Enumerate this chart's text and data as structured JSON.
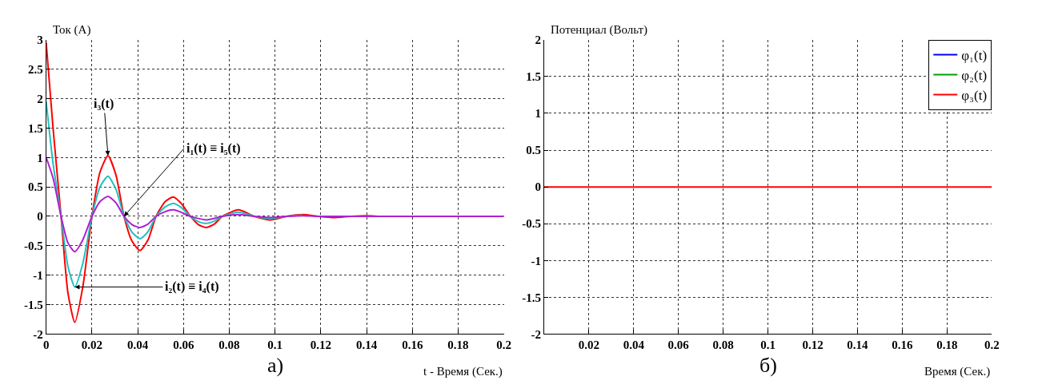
{
  "chart_data": [
    {
      "type": "line",
      "xlabel": "t - Время (Сек.)",
      "ylabel": "Ток (А)",
      "xlim": [
        0,
        0.2
      ],
      "ylim": [
        -2,
        3
      ],
      "xticks": [
        0,
        0.02,
        0.04,
        0.06,
        0.08,
        0.1,
        0.12,
        0.14,
        0.16,
        0.18,
        0.2
      ],
      "yticks": [
        -2,
        -1.5,
        -1,
        -0.5,
        0,
        0.5,
        1,
        1.5,
        2,
        2.5,
        3
      ],
      "grid": true,
      "legend": false,
      "line_style": "solid",
      "series": [
        {
          "color": "#ff0000",
          "x": [
            0,
            0.003,
            0.0065,
            0.0095,
            0.0125,
            0.016,
            0.02,
            0.0235,
            0.027,
            0.0305,
            0.034,
            0.0375,
            0.041,
            0.0445,
            0.048,
            0.052,
            0.0555,
            0.059,
            0.063,
            0.0665,
            0.07,
            0.0735,
            0.077,
            0.084,
            0.091,
            0.098,
            0.105,
            0.112,
            0.119,
            0.126,
            0.133,
            0.14,
            0.147,
            0.16
          ],
          "values": [
            2.95,
            1.5,
            0,
            -1.3,
            -1.8,
            -1.2,
            0,
            0.75,
            1.03,
            0.7,
            0,
            -0.42,
            -0.58,
            -0.4,
            0,
            0.25,
            0.33,
            0.22,
            0,
            -0.14,
            -0.19,
            -0.13,
            0,
            0.11,
            0,
            -0.06,
            0,
            0.03,
            0,
            -0.02,
            0,
            0.01,
            0,
            0
          ]
        },
        {
          "color": "#20c0c0",
          "x": [
            0,
            0.003,
            0.0065,
            0.0095,
            0.0125,
            0.016,
            0.02,
            0.0235,
            0.027,
            0.0305,
            0.034,
            0.0375,
            0.041,
            0.0445,
            0.048,
            0.052,
            0.0555,
            0.059,
            0.063,
            0.0665,
            0.07,
            0.0735,
            0.077,
            0.084,
            0.091,
            0.098,
            0.105,
            0.112
          ],
          "values": [
            1.95,
            0.9,
            0,
            -0.85,
            -1.2,
            -0.8,
            0,
            0.5,
            0.68,
            0.46,
            0,
            -0.27,
            -0.38,
            -0.26,
            0,
            0.16,
            0.22,
            0.15,
            0,
            -0.09,
            -0.12,
            -0.08,
            0,
            0.07,
            0,
            -0.04,
            0,
            0.02
          ]
        },
        {
          "color": "#b020d0",
          "x": [
            0,
            0.003,
            0.0065,
            0.0095,
            0.0125,
            0.016,
            0.02,
            0.0235,
            0.027,
            0.0305,
            0.034,
            0.0375,
            0.041,
            0.0445,
            0.048,
            0.052,
            0.0555,
            0.059,
            0.063,
            0.07,
            0.077,
            0.084,
            0.091,
            0.098,
            0.105,
            0.112,
            0.119,
            0.2
          ],
          "values": [
            1.0,
            0.65,
            0,
            -0.45,
            -0.6,
            -0.4,
            0,
            0.25,
            0.34,
            0.23,
            0,
            -0.14,
            -0.19,
            -0.13,
            0,
            0.08,
            0.11,
            0.07,
            0,
            -0.06,
            0,
            0.03,
            0,
            -0.02,
            0,
            0.01,
            0,
            0
          ]
        }
      ],
      "annotations": [
        {
          "text": "i₃(t)",
          "x": 0.027,
          "y": 1.03
        },
        {
          "text": "i₁(t) ≡ i₅(t)",
          "x": 0.034,
          "y": 0
        },
        {
          "text": "i₂(t) ≡ i₄(t)",
          "x": 0.0125,
          "y": -1.2
        },
        "a)"
      ]
    },
    {
      "type": "line",
      "xlabel": "Время (Сек.)",
      "ylabel": "Потенциал (Вольт)",
      "xlim": [
        0,
        0.2
      ],
      "ylim": [
        -2,
        2
      ],
      "xticks": [
        0.02,
        0.04,
        0.06,
        0.08,
        0.1,
        0.12,
        0.14,
        0.16,
        0.18,
        0.2
      ],
      "yticks": [
        -2,
        -1.5,
        -1,
        -0.5,
        0,
        0.5,
        1,
        1.5,
        2
      ],
      "grid": true,
      "legend": "top right",
      "line_style": "solid",
      "series": [
        {
          "name": "φ₁(t)",
          "color": "#0000ff"
        },
        {
          "name": "φ₂(t)",
          "color": "#00a000"
        },
        {
          "name": "φ₃(t)",
          "color": "#ff0000",
          "x": [
            0,
            0.2
          ],
          "values": [
            0,
            0
          ]
        }
      ],
      "annotations": [
        "б)"
      ]
    }
  ]
}
